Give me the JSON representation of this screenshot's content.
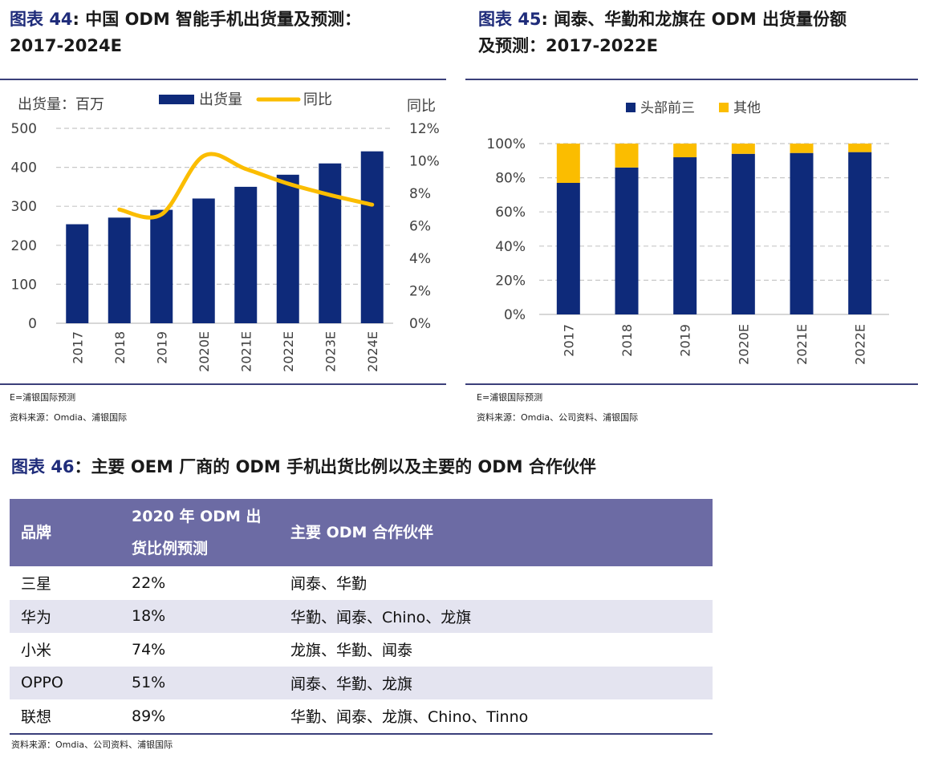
{
  "fig44": {
    "label": "图表",
    "num": "44",
    "title": ": 中国 ODM 智能手机出货量及预测：",
    "title_line2": "2017-2024E",
    "note": "E=浦银国际预测",
    "source": "资料来源：Omdia、浦银国际"
  },
  "fig45": {
    "label": "图表",
    "num": "45",
    "title": ": 闻泰、华勤和龙旗在 ODM 出货量份额",
    "title_line2": "及预测：2017-2022E",
    "note": "E=浦银国际预测",
    "source": "资料来源：Omdia、公司资料、浦银国际"
  },
  "fig46": {
    "label": "图表",
    "num": "46",
    "title": "：主要 OEM 厂商的 ODM 手机出货比例以及主要的 ODM 合作伙伴",
    "headers": [
      "品牌",
      "2020 年 ODM 出货比例预测",
      "主要 ODM 合作伙伴"
    ],
    "rows": [
      [
        "三星",
        "22%",
        "闻泰、华勤"
      ],
      [
        "华为",
        "18%",
        "华勤、闻泰、Chino、龙旗"
      ],
      [
        "小米",
        "74%",
        "龙旗、华勤、闻泰"
      ],
      [
        "OPPO",
        "51%",
        "闻泰、华勤、龙旗"
      ],
      [
        "联想",
        "89%",
        "华勤、闻泰、龙旗、Chino、Tinno"
      ]
    ],
    "source": "资料来源：Omdia、公司资料、浦银国际"
  },
  "colors": {
    "navy": "#0e2a7a",
    "gold": "#fbbd00",
    "grid": "#c8c8c8",
    "header": "#6c6ba4"
  },
  "chart_data": [
    {
      "type": "bar",
      "left_axis_title": "出货量：百万",
      "right_axis_title": "同比",
      "categories": [
        "2017",
        "2018",
        "2019",
        "2020E",
        "2021E",
        "2022E",
        "2023E",
        "2024E"
      ],
      "series": [
        {
          "name": "出货量",
          "type": "bar",
          "axis": "left",
          "values": [
            254,
            271,
            291,
            320,
            350,
            381,
            410,
            441
          ]
        },
        {
          "name": "同比",
          "type": "line",
          "axis": "right",
          "values": [
            null,
            7.0,
            6.7,
            10.3,
            9.5,
            8.6,
            7.9,
            7.3
          ]
        }
      ],
      "ylim": [
        0,
        500
      ],
      "yticks": [
        "0",
        "100",
        "200",
        "300",
        "400",
        "500"
      ],
      "y2lim": [
        0,
        12
      ],
      "y2ticks": [
        "0%",
        "2%",
        "4%",
        "6%",
        "8%",
        "10%",
        "12%"
      ],
      "grid": true,
      "legend": "top"
    },
    {
      "type": "bar",
      "stacked": true,
      "categories": [
        "2017",
        "2018",
        "2019",
        "2020E",
        "2021E",
        "2022E"
      ],
      "series": [
        {
          "name": "头部前三",
          "values": [
            77,
            86,
            92,
            94,
            94.5,
            95
          ]
        },
        {
          "name": "其他",
          "values": [
            23,
            14,
            8,
            6,
            5.5,
            5
          ]
        }
      ],
      "ylim": [
        0,
        100
      ],
      "yticks": [
        "0%",
        "20%",
        "40%",
        "60%",
        "80%",
        "100%"
      ],
      "grid": true,
      "legend": "top"
    }
  ]
}
